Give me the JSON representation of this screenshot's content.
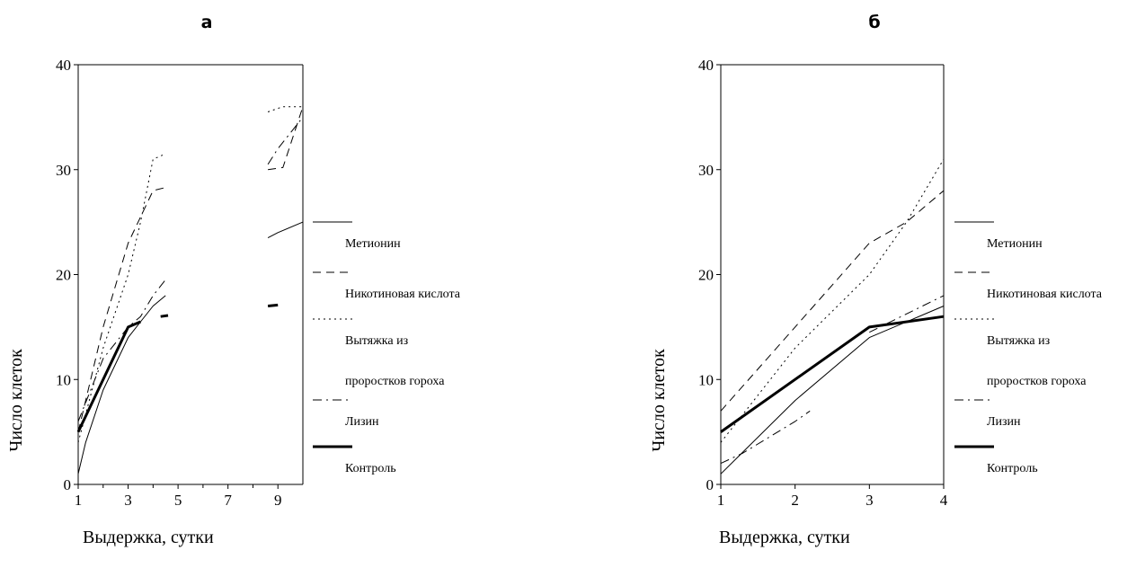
{
  "chart_data": [
    {
      "type": "line",
      "title": "а",
      "xlabel": "Выдержка, сутки",
      "ylabel": "Число клеток",
      "xlim": [
        1,
        10
      ],
      "ylim": [
        0,
        40
      ],
      "xticks": [
        "1",
        "3",
        "5",
        "7",
        "9"
      ],
      "yticks": [
        "0",
        "10",
        "20",
        "30",
        "40"
      ],
      "grid": false,
      "legend": "right",
      "series": [
        {
          "name": "Метионин",
          "style": "solid",
          "segments": [
            [
              [
                1,
                1
              ],
              [
                1.3,
                4
              ],
              [
                2,
                9
              ],
              [
                3,
                14
              ],
              [
                3.5,
                15.5
              ],
              [
                4,
                17
              ],
              [
                4.5,
                18
              ]
            ],
            [
              [
                8.6,
                23.5
              ],
              [
                9,
                24
              ],
              [
                10,
                25
              ]
            ]
          ]
        },
        {
          "name": "Никотиновая кислота",
          "style": "dash",
          "segments": [
            [
              [
                1,
                5
              ],
              [
                2,
                15
              ],
              [
                3,
                23
              ],
              [
                4,
                28
              ],
              [
                4.5,
                28.3
              ]
            ],
            [
              [
                8.6,
                30
              ],
              [
                9.2,
                30.2
              ],
              [
                10,
                36
              ]
            ]
          ]
        },
        {
          "name": "Вытяжка из проростков гороха",
          "style": "dot",
          "segments": [
            [
              [
                1,
                4
              ],
              [
                2,
                13
              ],
              [
                3,
                20
              ],
              [
                3.5,
                25
              ],
              [
                4,
                31
              ],
              [
                4.5,
                31.5
              ]
            ],
            [
              [
                8.6,
                35.5
              ],
              [
                9.2,
                36
              ],
              [
                10,
                36
              ]
            ]
          ]
        },
        {
          "name": "Лизин",
          "style": "dashdot",
          "segments": [
            [
              [
                1,
                6
              ],
              [
                2,
                12
              ],
              [
                3,
                15
              ],
              [
                3.5,
                16
              ],
              [
                4,
                18
              ],
              [
                4.5,
                19.5
              ]
            ],
            [
              [
                8.6,
                30.5
              ],
              [
                9,
                32
              ],
              [
                10,
                35
              ]
            ]
          ]
        },
        {
          "name": "Контроль",
          "style": "bold",
          "segments": [
            [
              [
                1,
                5
              ],
              [
                3,
                15
              ],
              [
                3.5,
                15.5
              ]
            ],
            [
              [
                4.3,
                16
              ],
              [
                4.6,
                16.1
              ]
            ],
            [
              [
                8.6,
                17
              ],
              [
                9,
                17.1
              ]
            ]
          ]
        }
      ]
    },
    {
      "type": "line",
      "title": "б",
      "xlabel": "Выдержка, сутки",
      "ylabel": "Число клеток",
      "xlim": [
        1,
        4
      ],
      "ylim": [
        0,
        40
      ],
      "xticks": [
        "1",
        "2",
        "3",
        "4"
      ],
      "yticks": [
        "0",
        "10",
        "20",
        "30",
        "40"
      ],
      "grid": false,
      "legend": "right",
      "series": [
        {
          "name": "Метионин",
          "style": "solid",
          "segments": [
            [
              [
                1,
                1
              ],
              [
                2,
                8
              ],
              [
                3,
                14
              ],
              [
                4,
                17
              ]
            ]
          ]
        },
        {
          "name": "Никотиновая кислота",
          "style": "dash",
          "segments": [
            [
              [
                1,
                7
              ],
              [
                2,
                15
              ],
              [
                3,
                23
              ],
              [
                3.5,
                25
              ],
              [
                4,
                28
              ]
            ]
          ]
        },
        {
          "name": "Вытяжка из проростков гороха",
          "style": "dot",
          "segments": [
            [
              [
                1,
                4
              ],
              [
                2,
                13
              ],
              [
                3,
                20
              ],
              [
                3.5,
                25
              ],
              [
                4,
                31
              ]
            ]
          ]
        },
        {
          "name": "Лизин",
          "style": "dashdot",
          "segments": [
            [
              [
                1,
                2
              ],
              [
                1.3,
                3
              ],
              [
                2,
                6
              ],
              [
                2.2,
                7
              ]
            ],
            [
              [
                3,
                14.5
              ],
              [
                4,
                18
              ]
            ]
          ]
        },
        {
          "name": "Контроль",
          "style": "bold",
          "segments": [
            [
              [
                1,
                5
              ],
              [
                3,
                15
              ],
              [
                4,
                16
              ]
            ]
          ]
        }
      ]
    }
  ],
  "legend": {
    "items": [
      {
        "label": "Метионин",
        "style": "solid"
      },
      {
        "label": "Никотиновая кислота",
        "style": "dash"
      },
      {
        "label": "Вытяжка из",
        "style": "dot"
      },
      {
        "label": "проростков гороха",
        "style": "none"
      },
      {
        "label": "Лизин",
        "style": "dashdot"
      },
      {
        "label": "Контроль",
        "style": "bold"
      }
    ]
  }
}
